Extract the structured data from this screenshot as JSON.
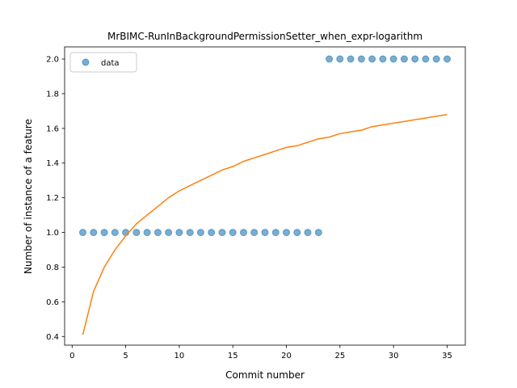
{
  "chart_data": {
    "type": "scatter",
    "title": "MrBIMC-RunInBackgroundPermissionSetter_when_expr-logarithm",
    "xlabel": "Commit number",
    "ylabel": "Number of instance of a feature",
    "xlim": [
      -0.7,
      36.7
    ],
    "ylim": [
      0.35,
      2.07
    ],
    "xticks": [
      0,
      5,
      10,
      15,
      20,
      25,
      30,
      35
    ],
    "xtick_labels": [
      "0",
      "5",
      "10",
      "15",
      "20",
      "25",
      "30",
      "35"
    ],
    "yticks": [
      0.4,
      0.6,
      0.8,
      1.0,
      1.2,
      1.4,
      1.6,
      1.8,
      2.0
    ],
    "ytick_labels": [
      "0.4",
      "0.6",
      "0.8",
      "1.0",
      "1.2",
      "1.4",
      "1.6",
      "1.8",
      "2.0"
    ],
    "grid": false,
    "legend": {
      "placement": "upper-left",
      "entries": [
        "data"
      ]
    },
    "series": [
      {
        "name": "data",
        "kind": "scatter",
        "color": "#1f77b4",
        "x": [
          1,
          2,
          3,
          4,
          5,
          6,
          7,
          8,
          9,
          10,
          11,
          12,
          13,
          14,
          15,
          16,
          17,
          18,
          19,
          20,
          21,
          22,
          23,
          24,
          25,
          26,
          27,
          28,
          29,
          30,
          31,
          32,
          33,
          34,
          35
        ],
        "y": [
          1,
          1,
          1,
          1,
          1,
          1,
          1,
          1,
          1,
          1,
          1,
          1,
          1,
          1,
          1,
          1,
          1,
          1,
          1,
          1,
          1,
          1,
          1,
          2,
          2,
          2,
          2,
          2,
          2,
          2,
          2,
          2,
          2,
          2,
          2
        ]
      },
      {
        "kind": "line",
        "color": "#ff7f0e",
        "x": [
          1,
          2,
          3,
          4,
          5,
          6,
          7,
          8,
          9,
          10,
          11,
          12,
          13,
          14,
          15,
          16,
          17,
          18,
          19,
          20,
          21,
          22,
          23,
          24,
          25,
          26,
          27,
          28,
          29,
          30,
          31,
          32,
          33,
          34,
          35
        ],
        "y": [
          0.41,
          0.66,
          0.8,
          0.9,
          0.98,
          1.05,
          1.1,
          1.15,
          1.2,
          1.24,
          1.27,
          1.3,
          1.33,
          1.36,
          1.38,
          1.41,
          1.43,
          1.45,
          1.47,
          1.49,
          1.5,
          1.52,
          1.54,
          1.55,
          1.57,
          1.58,
          1.59,
          1.61,
          1.62,
          1.63,
          1.64,
          1.65,
          1.66,
          1.67,
          1.68
        ]
      }
    ]
  }
}
